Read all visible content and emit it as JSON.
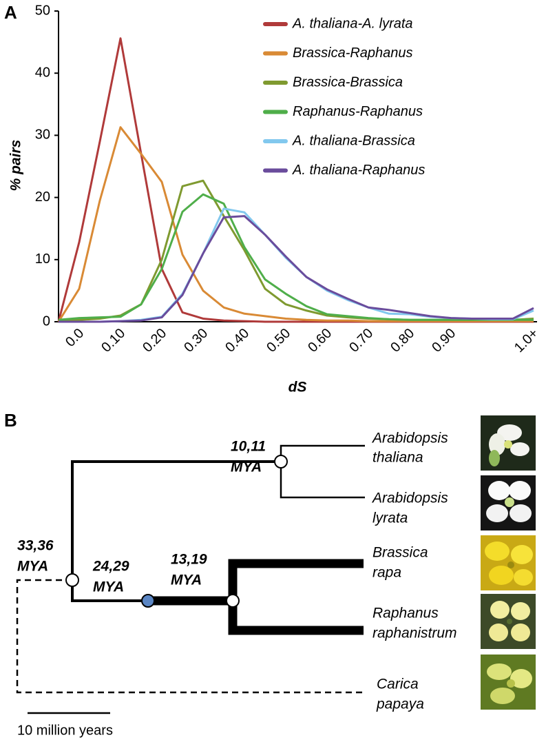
{
  "chart_data": {
    "type": "line",
    "panel_label": "A",
    "xlabel": "dS",
    "ylabel": "% pairs",
    "categories": [
      null,
      "0.0",
      null,
      "0.10",
      null,
      "0.20",
      null,
      "0.30",
      null,
      "0.40",
      null,
      "0.50",
      null,
      "0.60",
      null,
      "0.70",
      null,
      "0.80",
      null,
      "0.90",
      null,
      null,
      null,
      "1.0+"
    ],
    "ylim": [
      0,
      50
    ],
    "yticks": [
      0,
      10,
      20,
      30,
      40,
      50
    ],
    "grid": false,
    "legend": "upper right",
    "series": [
      {
        "name": "A. thaliana-A. lyrata",
        "color": "#b03a3a",
        "values": [
          0,
          12.8,
          29,
          45.6,
          27,
          8.5,
          1.5,
          0.5,
          0.2,
          0.1,
          0,
          0,
          0,
          0,
          0,
          0,
          0,
          0,
          0,
          0,
          0,
          0,
          0,
          0
        ]
      },
      {
        "name": "Brassica-Raphanus",
        "color": "#d98a35",
        "values": [
          0,
          5.3,
          19.5,
          31.3,
          27,
          22.5,
          10.8,
          5,
          2.3,
          1.3,
          0.9,
          0.5,
          0.3,
          0.2,
          0.2,
          0.1,
          0.1,
          0.1,
          0.1,
          0.1,
          0.1,
          0.1,
          0.1,
          0.1
        ]
      },
      {
        "name": "Brassica-Brassica",
        "color": "#7f9a30",
        "values": [
          0.2,
          0.3,
          0.5,
          1.0,
          2.8,
          10,
          21.8,
          22.7,
          17,
          11.5,
          5.3,
          2.8,
          1.8,
          1.0,
          0.7,
          0.5,
          0.4,
          0.3,
          0.3,
          0.3,
          0.3,
          0.3,
          0.3,
          0.5
        ]
      },
      {
        "name": "Raphanus-Raphanus",
        "color": "#4fae4a",
        "values": [
          0.3,
          0.6,
          0.7,
          0.8,
          2.8,
          8.5,
          17.7,
          20.5,
          19,
          12,
          6.8,
          4.5,
          2.5,
          1.2,
          0.9,
          0.6,
          0.4,
          0.3,
          0.3,
          0.3,
          0.3,
          0.3,
          0.3,
          0.3
        ]
      },
      {
        "name": "A. thaliana-Brassica",
        "color": "#82c8ee",
        "values": [
          0,
          0,
          0,
          0.1,
          0.3,
          0.8,
          4.5,
          11,
          18.2,
          17.6,
          14,
          10.3,
          7.2,
          5,
          3.5,
          2.3,
          1.3,
          1.2,
          0.8,
          0.6,
          0.5,
          0.4,
          0.4,
          1.8
        ]
      },
      {
        "name": "A. thaliana-Raphanus",
        "color": "#6a4c9c",
        "values": [
          0,
          0,
          0,
          0.1,
          0.2,
          0.7,
          4.3,
          11,
          16.8,
          17,
          14,
          10.5,
          7.2,
          5.2,
          3.7,
          2.3,
          1.9,
          1.4,
          0.9,
          0.6,
          0.5,
          0.5,
          0.5,
          2.2
        ]
      }
    ]
  },
  "diagram": {
    "panel_label": "B",
    "divergences": [
      {
        "lines": [
          "10,11",
          "MYA"
        ]
      },
      {
        "lines": [
          "33,36",
          "MYA"
        ]
      },
      {
        "lines": [
          "24,29",
          "MYA"
        ]
      },
      {
        "lines": [
          "13,19",
          "MYA"
        ]
      }
    ],
    "taxa": [
      {
        "lines": [
          "Arabidopsis",
          "thaliana"
        ]
      },
      {
        "lines": [
          "Arabidopsis",
          "lyrata"
        ]
      },
      {
        "lines": [
          "Brassica",
          "rapa"
        ]
      },
      {
        "lines": [
          "Raphanus",
          "raphanistrum"
        ]
      },
      {
        "lines": [
          "Carica",
          "papaya"
        ]
      }
    ],
    "scale_bar": "10 million years"
  }
}
